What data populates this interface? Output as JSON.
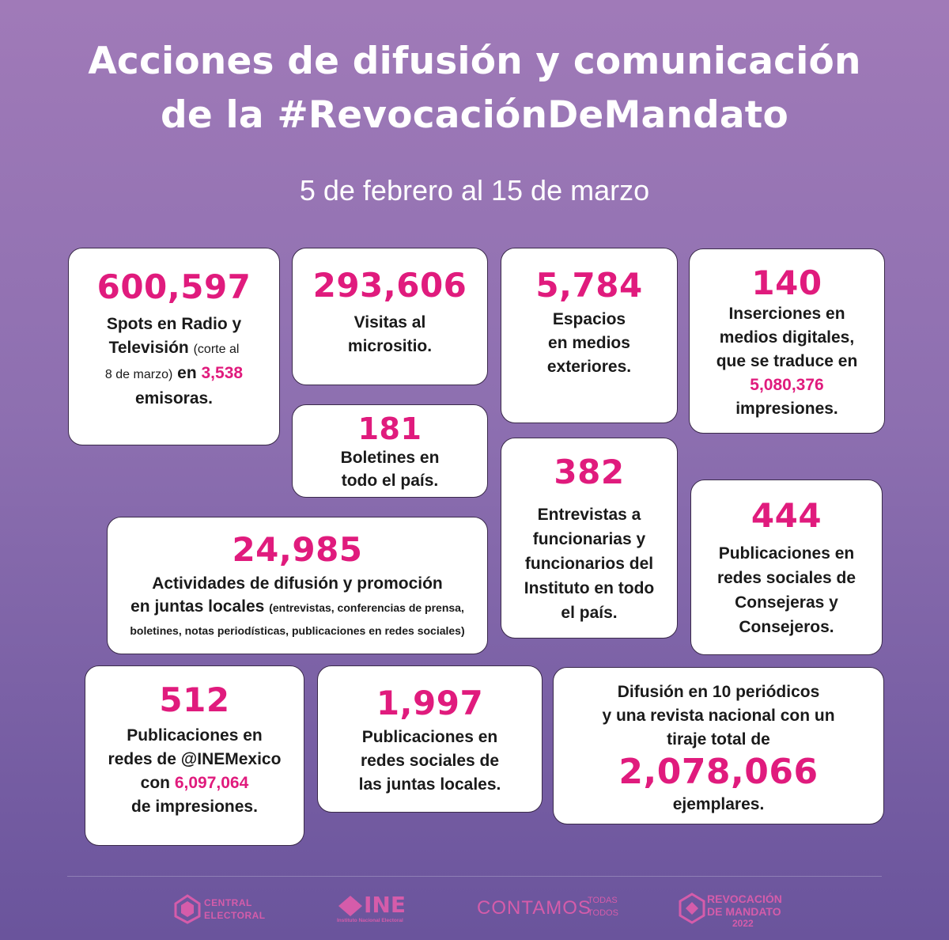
{
  "header": {
    "title_line1": "Acciones de difusión y comunicación",
    "title_line2": "de la #RevocaciónDeMandato",
    "subtitle": "5 de febrero al 15 de marzo"
  },
  "cards": {
    "spots": {
      "number": "600,597",
      "l1": "Spots en Radio y",
      "l2a": "Televisión",
      "l2b": "(corte al",
      "l3a": "8 de marzo)",
      "l3b": "en",
      "l3c": "3,538",
      "l4": "emisoras."
    },
    "visitas": {
      "number": "293,606",
      "l1": "Visitas al",
      "l2": "micrositio."
    },
    "espacios": {
      "number": "5,784",
      "l1": "Espacios",
      "l2": "en medios",
      "l3": "exteriores."
    },
    "inserciones": {
      "number": "140",
      "l1": "Inserciones en",
      "l2": "medios digitales,",
      "l3": "que se traduce en",
      "l4": "5,080,376",
      "l5": "impresiones."
    },
    "boletines": {
      "number": "181",
      "l1": "Boletines en",
      "l2": "todo el país."
    },
    "entrevistas": {
      "number": "382",
      "l1": "Entrevistas a",
      "l2": "funcionarias y",
      "l3": "funcionarios del",
      "l4": "Instituto en todo",
      "l5": "el país."
    },
    "actividades": {
      "number": "24,985",
      "l1": "Actividades de difusión y promoción",
      "l2a": "en juntas locales",
      "l2b": "(entrevistas, conferencias de prensa,",
      "l3": "boletines, notas periodísticas, publicaciones en redes sociales)"
    },
    "consejeras": {
      "number": "444",
      "l1": "Publicaciones en",
      "l2": "redes sociales de",
      "l3": "Consejeras y",
      "l4": "Consejeros."
    },
    "inemexico": {
      "number": "512",
      "l1": "Publicaciones en",
      "l2": "redes de @INEMexico",
      "l3a": "con",
      "l3b": "6,097,064",
      "l4": "de impresiones."
    },
    "juntas": {
      "number": "1,997",
      "l1": "Publicaciones en",
      "l2": "redes sociales de",
      "l3": "las juntas locales."
    },
    "periodicos": {
      "l1": "Difusión en 10 periódicos",
      "l2": "y una revista  nacional con un",
      "l3": "tiraje total de",
      "number": "2,078,066",
      "l4": "ejemplares."
    }
  },
  "footer": {
    "central_l1": "CENTRAL",
    "central_l2": "ELECTORAL",
    "ine": "INE",
    "ine_sub": "Instituto Nacional Electoral",
    "contamos": "CONTAMOS",
    "contamos_t1": "TODAS",
    "contamos_t2": "TODOS",
    "rm_l1": "REVOCACIÓN",
    "rm_l2": "DE MANDATO",
    "rm_l3": "2022"
  }
}
